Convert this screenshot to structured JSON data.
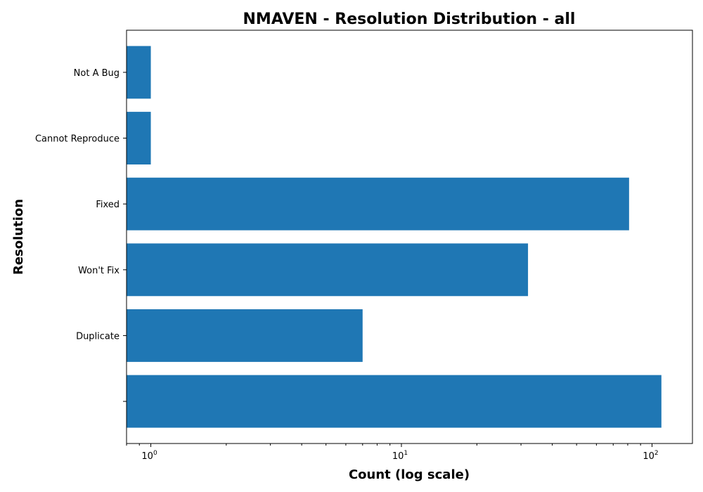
{
  "chart_data": {
    "type": "bar",
    "orientation": "horizontal",
    "title": "NMAVEN - Resolution Distribution - all",
    "xlabel": "Count (log scale)",
    "ylabel": "Resolution",
    "x_scale": "log",
    "xlim": [
      0.8,
      145
    ],
    "x_ticks": [
      {
        "value": 1,
        "base": "10",
        "exp": "0"
      },
      {
        "value": 10,
        "base": "10",
        "exp": "1"
      },
      {
        "value": 100,
        "base": "10",
        "exp": "2"
      }
    ],
    "categories": [
      "",
      "Duplicate",
      "Won't Fix",
      "Fixed",
      "Cannot Reproduce",
      "Not A Bug"
    ],
    "values": [
      109,
      7,
      32,
      81,
      1,
      1
    ],
    "bar_color": "#1f77b4",
    "grid": false,
    "legend": "none"
  }
}
